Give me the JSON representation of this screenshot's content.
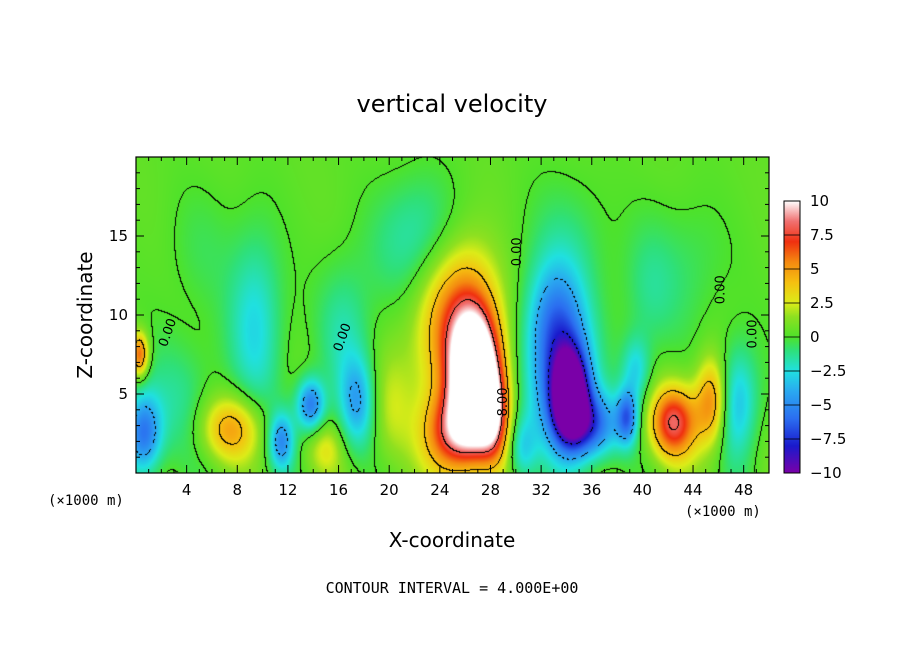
{
  "chart_data": {
    "type": "heatmap",
    "title": "vertical velocity",
    "xlabel": "X-coordinate",
    "ylabel": "Z-coordinate",
    "x_unit": "(×1000 m)",
    "y_unit": "(×1000 m)",
    "xlim": [
      0,
      50
    ],
    "ylim": [
      0,
      20
    ],
    "x_ticks": [
      4,
      8,
      12,
      16,
      20,
      24,
      28,
      32,
      36,
      40,
      44,
      48
    ],
    "y_ticks": [
      5,
      10,
      15
    ],
    "colorbar": {
      "min": -10,
      "max": 10,
      "ticks": [
        "10",
        "7.5",
        "5",
        "2.5",
        "0",
        "−2.5",
        "−5",
        "−7.5",
        "−10"
      ],
      "stops": [
        {
          "v": -10,
          "color": "#7a00a8"
        },
        {
          "v": -8,
          "color": "#1a1acc"
        },
        {
          "v": -6,
          "color": "#2b6ef0"
        },
        {
          "v": -4,
          "color": "#2aa8f0"
        },
        {
          "v": -2.5,
          "color": "#20e0e0"
        },
        {
          "v": -1,
          "color": "#2ee07a"
        },
        {
          "v": 0,
          "color": "#4ee22a"
        },
        {
          "v": 1.5,
          "color": "#8ee020"
        },
        {
          "v": 2.5,
          "color": "#dcec18"
        },
        {
          "v": 4,
          "color": "#f5c010"
        },
        {
          "v": 5.5,
          "color": "#f48a10"
        },
        {
          "v": 7,
          "color": "#f03010"
        },
        {
          "v": 8.5,
          "color": "#f07070"
        },
        {
          "v": 10,
          "color": "#ffffff"
        }
      ]
    },
    "features": [
      {
        "x": 26.8,
        "z": 5.8,
        "value": 12,
        "sx": 1.2,
        "sz": 2.5
      },
      {
        "x": 26.5,
        "z": 7.5,
        "value": 6,
        "sx": 1.8,
        "sz": 4.0
      },
      {
        "x": 24.5,
        "z": 9.5,
        "value": 3.5,
        "sx": 2.2,
        "sz": 3.5
      },
      {
        "x": 25.0,
        "z": 2.5,
        "value": 6.5,
        "sx": 1.6,
        "sz": 1.8
      },
      {
        "x": 28.2,
        "z": 3.5,
        "value": 6,
        "sx": 0.9,
        "sz": 2.0
      },
      {
        "x": 34.3,
        "z": 4.8,
        "value": -12,
        "sx": 1.0,
        "sz": 2.0
      },
      {
        "x": 33.5,
        "z": 6.5,
        "value": -6,
        "sx": 1.8,
        "sz": 3.5
      },
      {
        "x": 33.0,
        "z": 10.0,
        "value": -3,
        "sx": 1.5,
        "sz": 2.5
      },
      {
        "x": 36.0,
        "z": 3.0,
        "value": -6,
        "sx": 1.5,
        "sz": 1.5
      },
      {
        "x": 38.8,
        "z": 3.5,
        "value": -5.5,
        "sx": 0.6,
        "sz": 1.2
      },
      {
        "x": 42.5,
        "z": 3.2,
        "value": 7.5,
        "sx": 1.3,
        "sz": 1.6
      },
      {
        "x": 45.5,
        "z": 4.5,
        "value": 5.5,
        "sx": 0.9,
        "sz": 2.0
      },
      {
        "x": 47.5,
        "z": 4.5,
        "value": -4,
        "sx": 1.2,
        "sz": 2.5
      },
      {
        "x": 7.5,
        "z": 2.8,
        "value": 4.5,
        "sx": 1.8,
        "sz": 1.5
      },
      {
        "x": 0.6,
        "z": 2.5,
        "value": -6,
        "sx": 1.0,
        "sz": 1.8
      },
      {
        "x": 0.3,
        "z": 7.5,
        "value": 6,
        "sx": 0.5,
        "sz": 1.0
      },
      {
        "x": 3.5,
        "z": 4.5,
        "value": -1.5,
        "sx": 2.5,
        "sz": 3.0
      },
      {
        "x": 13.8,
        "z": 4.3,
        "value": -6,
        "sx": 0.8,
        "sz": 1.2
      },
      {
        "x": 11.5,
        "z": 2.0,
        "value": -5,
        "sx": 0.7,
        "sz": 1.3
      },
      {
        "x": 9.5,
        "z": 9.5,
        "value": -3,
        "sx": 1.5,
        "sz": 4.0
      },
      {
        "x": 17.5,
        "z": 4.5,
        "value": -4,
        "sx": 1.0,
        "sz": 2.0
      },
      {
        "x": 16.5,
        "z": 9.0,
        "value": -2,
        "sx": 1.5,
        "sz": 3.0
      },
      {
        "x": 20.0,
        "z": 4.0,
        "value": 1.5,
        "sx": 1.2,
        "sz": 2.5
      },
      {
        "x": 21.5,
        "z": 14.0,
        "value": -1.5,
        "sx": 2.5,
        "sz": 3.0
      },
      {
        "x": 23.0,
        "z": 15.5,
        "value": -1.2,
        "sx": 2.0,
        "sz": 2.5
      },
      {
        "x": 34.0,
        "z": 14.5,
        "value": -1.2,
        "sx": 2.5,
        "sz": 3.0
      },
      {
        "x": 40.5,
        "z": 11.5,
        "value": -1.5,
        "sx": 1.5,
        "sz": 3.0
      },
      {
        "x": 39.5,
        "z": 6.5,
        "value": -3,
        "sx": 0.8,
        "sz": 1.5
      },
      {
        "x": 30.5,
        "z": 1.5,
        "value": -3,
        "sx": 0.8,
        "sz": 1.5
      },
      {
        "x": 15.0,
        "z": 1.5,
        "value": 2,
        "sx": 1.0,
        "sz": 1.2
      },
      {
        "x": 5.0,
        "z": 14.0,
        "value": -0.8,
        "sx": 2.0,
        "sz": 3.0
      },
      {
        "x": 44.0,
        "z": 13.0,
        "value": -1.0,
        "sx": 2.0,
        "sz": 3.0
      }
    ],
    "contour_labels": [
      {
        "text": "0.00",
        "x": 2.8,
        "z": 8.8,
        "rotate": -70
      },
      {
        "text": "0.00",
        "x": 16.6,
        "z": 8.5,
        "rotate": -70
      },
      {
        "text": "0.00",
        "x": 30.4,
        "z": 14.0,
        "rotate": -90
      },
      {
        "text": "0.00",
        "x": 46.5,
        "z": 11.6,
        "rotate": -90
      },
      {
        "text": "0.00",
        "x": 49.0,
        "z": 8.8,
        "rotate": -90
      },
      {
        "text": "8.00",
        "x": 29.3,
        "z": 4.5,
        "rotate": -90
      }
    ]
  },
  "footer": {
    "contour_interval_text": "CONTOUR INTERVAL = 4.000E+00"
  }
}
